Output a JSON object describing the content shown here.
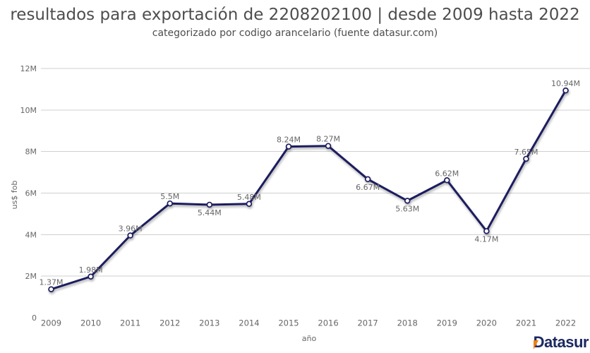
{
  "header": {
    "title": "resultados para exportación de 2208202100 | desde 2009 hasta 2022",
    "subtitle": "categorizado por codigo arancelario (fuente datasur.com)"
  },
  "chart_data": {
    "type": "line",
    "title": "resultados para exportación de 2208202100 | desde 2009 hasta 2022",
    "subtitle": "categorizado por codigo arancelario (fuente datasur.com)",
    "xlabel": "año",
    "ylabel": "us$ fob",
    "unit": "M",
    "categories": [
      "2009",
      "2010",
      "2011",
      "2012",
      "2013",
      "2014",
      "2015",
      "2016",
      "2017",
      "2018",
      "2019",
      "2020",
      "2021",
      "2022"
    ],
    "values": [
      1.37,
      1.98,
      3.96,
      5.5,
      5.44,
      5.48,
      8.24,
      8.27,
      6.67,
      5.63,
      6.62,
      4.17,
      7.65,
      10.94
    ],
    "point_labels": [
      "1.37M",
      "1.98M",
      "3.96M",
      "5.5M",
      "5.44M",
      "5.48M",
      "8.24M",
      "8.27M",
      "6.67M",
      "5.63M",
      "6.62M",
      "4.17M",
      "7.65M",
      "10.94M"
    ],
    "label_placement": [
      "above",
      "above",
      "above",
      "above",
      "below",
      "above",
      "above",
      "above",
      "below",
      "below",
      "above",
      "below",
      "above",
      "above"
    ],
    "ylim": [
      0,
      12
    ],
    "ytick_values": [
      0,
      2,
      4,
      6,
      8,
      10,
      12
    ],
    "ytick_labels": [
      "0",
      "2M",
      "4M",
      "6M",
      "8M",
      "10M",
      "12M"
    ],
    "grid": true,
    "legend_position": "none"
  },
  "colors": {
    "line": "#1b1b5e",
    "marker_fill": "#ffffff",
    "grid": "#cfcfcf",
    "tick_label": "#666666",
    "data_label": "#666666",
    "title_text": "#4d4d4d",
    "logo_navy": "#1b2960",
    "logo_orange": "#f07f13",
    "background": "#ffffff"
  },
  "footer": {
    "logo": {
      "text": "Datasur",
      "first_letter": "D",
      "rest": "atasur"
    }
  }
}
